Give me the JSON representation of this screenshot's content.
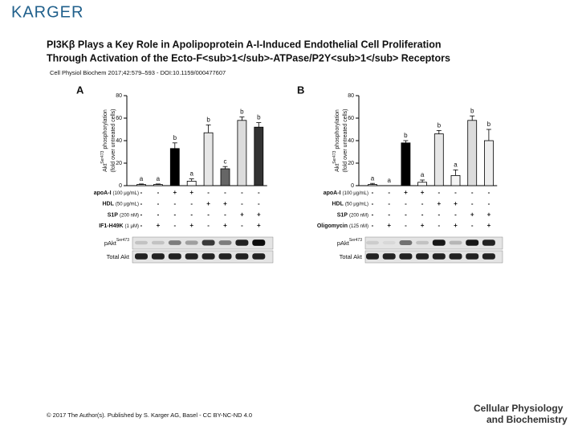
{
  "header": {
    "logo": "KARGER",
    "title_lines": [
      "PI3Kβ Plays a Key Role in Apolipoprotein A-I-Induced Endothelial Cell Proliferation",
      "Through Activation of the Ecto-F<sub>1</sub>-ATPase/P2Y<sub>1</sub> Receptors"
    ],
    "citation": "Cell Physiol Biochem 2017;42:579–593 - DOI:10.1159/000477607"
  },
  "chart_data": [
    {
      "type": "bar",
      "panel": "A",
      "ylabel": {
        "name": "Akt",
        "superscript": "Ser473",
        "lines": [
          "phosphorylation",
          "(fold over untreated cells)"
        ]
      },
      "categories": [
        null,
        null,
        null,
        null,
        null,
        null,
        null,
        null
      ],
      "values": [
        1,
        1,
        33,
        4,
        47,
        15,
        58,
        52
      ],
      "errors": [
        0.5,
        0.5,
        5,
        2,
        7,
        2,
        3,
        4
      ],
      "annotations": [
        "a",
        "a",
        "b",
        "a",
        "b",
        "c",
        "b",
        "b"
      ],
      "colors": [
        "#ffffff",
        "#ffffff",
        "#000000",
        "#ffffff",
        "#e6e6e6",
        "#666666",
        "#dcdcdc",
        "#333333"
      ],
      "ylim": [
        0,
        80
      ],
      "yticks": [
        0,
        20,
        40,
        60,
        80
      ],
      "treatments": [
        {
          "name": "apoA-I",
          "dose": "(100 μg/mL)",
          "signs": [
            "-",
            "-",
            "+",
            "+",
            "-",
            "-",
            "-",
            "-"
          ]
        },
        {
          "name": "HDL",
          "dose": "(50 μg/mL)",
          "signs": [
            "-",
            "-",
            "-",
            "-",
            "+",
            "+",
            "-",
            "-"
          ]
        },
        {
          "name": "S1P",
          "dose": "(200 nM)",
          "signs": [
            "-",
            "-",
            "-",
            "-",
            "-",
            "-",
            "+",
            "+"
          ]
        },
        {
          "name": "IF1-H49K",
          "dose": "(1 μM)",
          "signs": [
            "-",
            "+",
            "-",
            "+",
            "-",
            "+",
            "-",
            "+"
          ]
        }
      ],
      "blots": [
        {
          "name": "pAkt",
          "superscript": "Ser473"
        },
        {
          "name": "Total Akt"
        }
      ]
    },
    {
      "type": "bar",
      "panel": "B",
      "ylabel": {
        "name": "Akt",
        "superscript": "Ser473",
        "lines": [
          "phosphorylation",
          "(fold over untreated cells)"
        ]
      },
      "categories": [
        null,
        null,
        null,
        null,
        null,
        null,
        null,
        null
      ],
      "values": [
        1,
        0,
        38,
        3,
        46,
        9,
        58,
        40
      ],
      "errors": [
        1,
        0,
        2,
        2,
        3,
        5,
        4,
        10
      ],
      "annotations": [
        "a",
        "a",
        "b",
        "a",
        "b",
        "a",
        "b",
        "b"
      ],
      "colors": [
        "#ffffff",
        "#ffffff",
        "#000000",
        "#ffffff",
        "#e6e6e6",
        "#f4f4f4",
        "#dcdcdc",
        "#eeeeee"
      ],
      "ylim": [
        0,
        80
      ],
      "yticks": [
        0,
        20,
        40,
        60,
        80
      ],
      "treatments": [
        {
          "name": "apoA-I",
          "dose": "(100 μg/mL)",
          "signs": [
            "-",
            "-",
            "+",
            "+",
            "-",
            "-",
            "-",
            "-"
          ]
        },
        {
          "name": "HDL",
          "dose": "(50 μg/mL)",
          "signs": [
            "-",
            "-",
            "-",
            "-",
            "+",
            "+",
            "-",
            "-"
          ]
        },
        {
          "name": "S1P",
          "dose": "(200 nM)",
          "signs": [
            "-",
            "-",
            "-",
            "-",
            "-",
            "-",
            "+",
            "+"
          ]
        },
        {
          "name": "Oligomycin",
          "dose": "(125 nM)",
          "signs": [
            "-",
            "+",
            "-",
            "+",
            "-",
            "+",
            "-",
            "+"
          ]
        }
      ],
      "blots": [
        {
          "name": "pAkt",
          "superscript": "Ser473"
        },
        {
          "name": "Total Akt"
        }
      ]
    }
  ],
  "footer": {
    "copyright": "© 2017 The Author(s). Published by S. Karger AG, Basel - CC BY-NC-ND 4.0",
    "journal_lines": [
      "Cellular Physiology",
      "and Biochemistry"
    ]
  }
}
